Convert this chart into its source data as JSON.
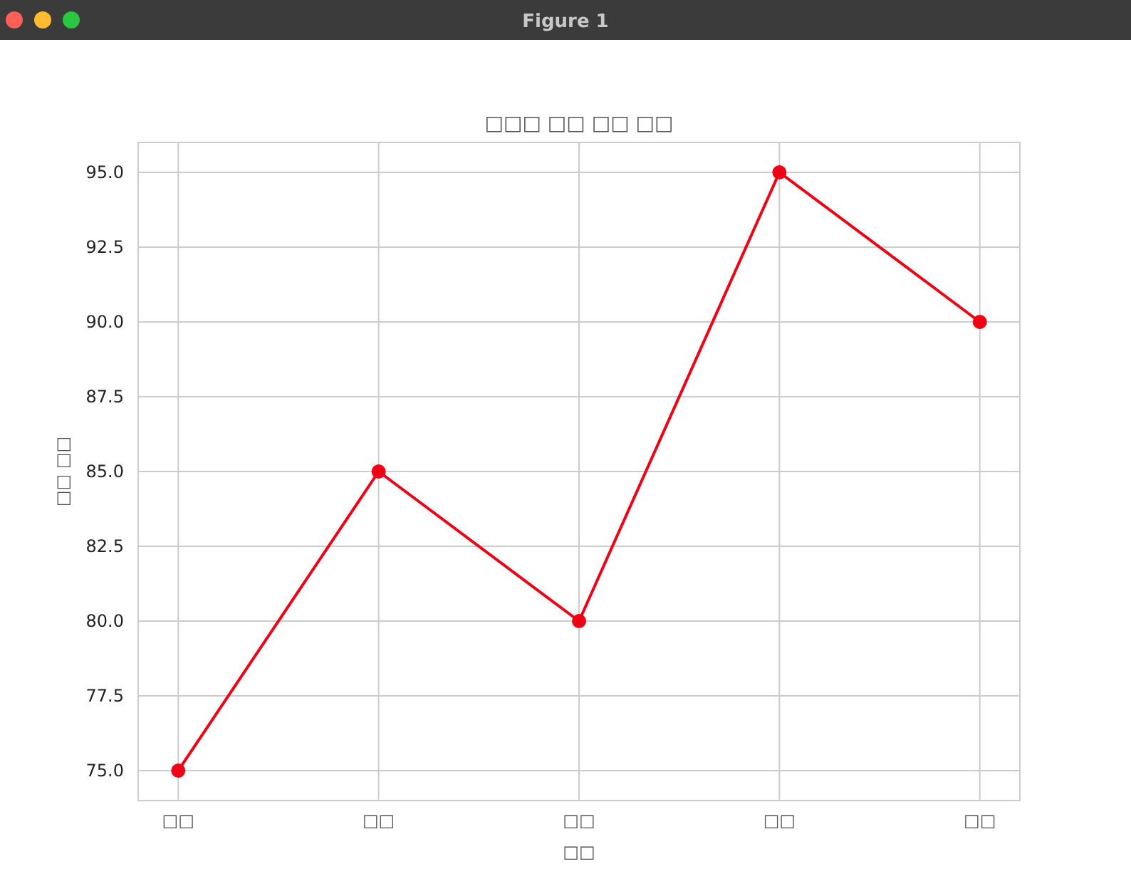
{
  "chart_data": {
    "type": "line",
    "title": "□□□ □□ □□ □□",
    "xlabel": "□□",
    "ylabel": "□□ □□",
    "annotations": [
      "Figure 1"
    ],
    "categories": [
      "□□",
      "□□",
      "□□",
      "□□",
      "□□"
    ],
    "series": [
      {
        "color": "#f00014",
        "values": [
          75,
          85,
          80,
          95,
          90
        ]
      }
    ],
    "ylim": [
      74,
      96
    ],
    "yticks": [
      {
        "value": 75,
        "label": "75.0"
      },
      {
        "value": 77.5,
        "label": "77.5"
      },
      {
        "value": 80,
        "label": "80.0"
      },
      {
        "value": 82.5,
        "label": "82.5"
      },
      {
        "value": 85,
        "label": "85.0"
      },
      {
        "value": 87.5,
        "label": "87.5"
      },
      {
        "value": 90,
        "label": "90.0"
      },
      {
        "value": 92.5,
        "label": "92.5"
      },
      {
        "value": 95,
        "label": "95.0"
      }
    ],
    "grid": true,
    "marker": "circle",
    "line_style": "solid"
  }
}
